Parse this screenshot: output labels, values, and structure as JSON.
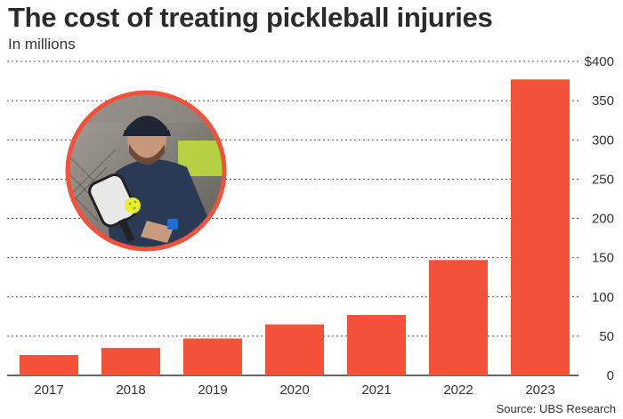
{
  "title": "The cost of treating pickleball injuries",
  "subtitle": "In millions",
  "source": "Source: UBS Research",
  "colors": {
    "bar": "#f4513a",
    "grid": "#555555",
    "photo_ring": "#f4513a"
  },
  "photo": {
    "icon": "pickleball-player-photo"
  },
  "chart_data": {
    "type": "bar",
    "title": "The cost of treating pickleball injuries",
    "subtitle": "In millions",
    "xlabel": "",
    "ylabel": "",
    "categories": [
      "2017",
      "2018",
      "2019",
      "2020",
      "2021",
      "2022",
      "2023"
    ],
    "values": [
      26,
      35,
      47,
      65,
      77,
      147,
      377
    ],
    "ylim": [
      0,
      400
    ],
    "yticks": [
      0,
      50,
      100,
      150,
      200,
      250,
      300,
      350,
      400
    ],
    "ytick_labels": [
      "0",
      "50",
      "100",
      "150",
      "200",
      "250",
      "300",
      "350",
      "$400"
    ],
    "grid": true
  }
}
